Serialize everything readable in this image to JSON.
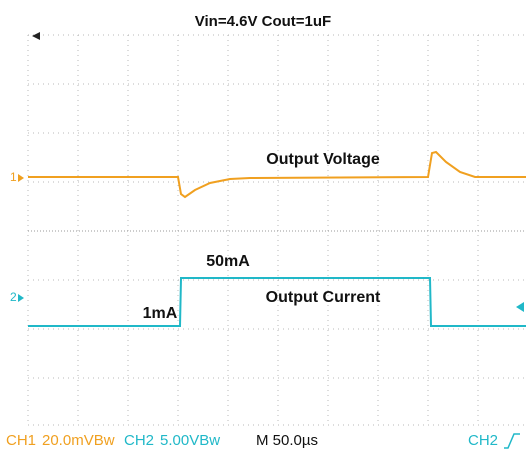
{
  "header": {
    "title": "Vin=4.6V  Cout=1uF"
  },
  "annotations": {
    "voltage": "Output Voltage",
    "current": "Output Current",
    "high": "50mA",
    "low": "1mA"
  },
  "markers": {
    "ch1": "1",
    "ch2": "2"
  },
  "status": {
    "ch1": "CH1",
    "ch1_scale": "20.0mVBw",
    "ch2": "CH2",
    "ch2_scale": "5.00VBw",
    "time": "M 50.0µs",
    "trigger": "CH2"
  }
}
